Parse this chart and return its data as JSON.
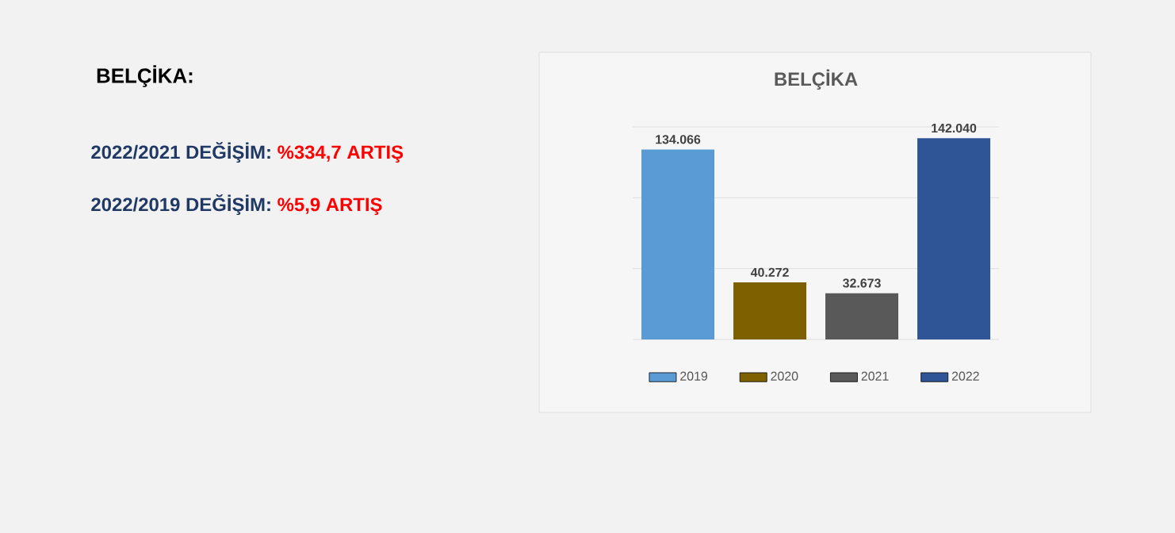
{
  "chart_data": {
    "type": "bar",
    "title": "BELÇİKA",
    "categories": [
      null
    ],
    "series": [
      {
        "name": "2019",
        "color": "#5b9bd5",
        "values": [
          134066
        ],
        "value_labels": [
          "134.066"
        ]
      },
      {
        "name": "2020",
        "color": "#7f6000",
        "values": [
          40272
        ],
        "value_labels": [
          "40.272"
        ]
      },
      {
        "name": "2021",
        "color": "#595959",
        "values": [
          32673
        ],
        "value_labels": [
          "32.673"
        ]
      },
      {
        "name": "2022",
        "color": "#2f5597",
        "values": [
          142040
        ],
        "value_labels": [
          "142.040"
        ]
      }
    ],
    "ylim": [
      0,
      150000
    ],
    "yticks": [
      {
        "value": 0,
        "label": null
      },
      {
        "value": 50000,
        "label": null
      },
      {
        "value": 100000,
        "label": null
      },
      {
        "value": 150000,
        "label": null
      }
    ],
    "grid": "y",
    "legend": "bottom",
    "tick_labels": false,
    "annotations": [
      "BELÇİKA:",
      "2022/2021 DEĞİŞİM:",
      "%334,7 ARTIŞ",
      "2022/2019 DEĞİŞİM:",
      "%5,9 ARTIŞ"
    ]
  }
}
